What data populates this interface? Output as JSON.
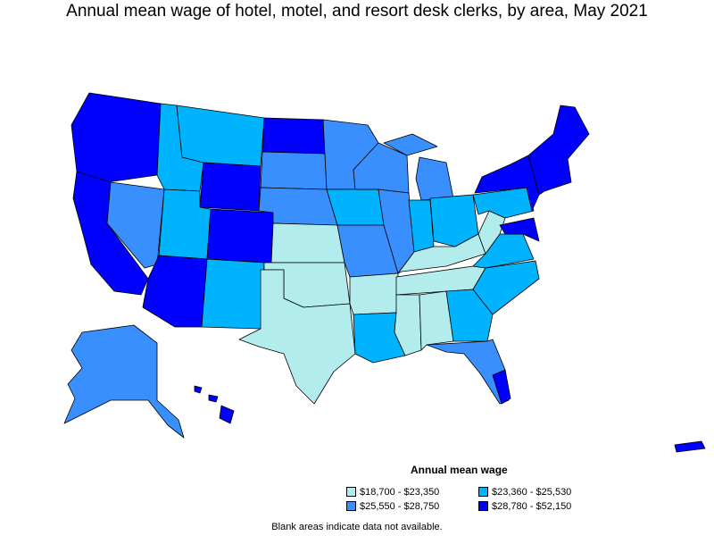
{
  "title": "Annual mean wage of hotel, motel, and resort desk clerks, by area, May 2021",
  "legend": {
    "title": "Annual mean wage",
    "items": [
      {
        "label": "$18,700 - $23,350",
        "color": "#b3ecec"
      },
      {
        "label": "$23,360 - $25,530",
        "color": "#00b3ff"
      },
      {
        "label": "$25,550 - $28,750",
        "color": "#3a8fff"
      },
      {
        "label": "$28,780 - $52,150",
        "color": "#0000ff"
      }
    ]
  },
  "footnote": "Blank areas indicate data not available.",
  "regions": [
    {
      "name": "Pacific Northwest",
      "range": "$28,780 - $52,150"
    },
    {
      "name": "California",
      "range": "$28,780 - $52,150"
    },
    {
      "name": "Nevada",
      "range": "$25,550 - $28,750"
    },
    {
      "name": "Idaho",
      "range": "$23,360 - $25,530"
    },
    {
      "name": "Montana",
      "range": "$23,360 - $25,530"
    },
    {
      "name": "Wyoming",
      "range": "$28,780 - $52,150"
    },
    {
      "name": "Utah",
      "range": "$23,360 - $25,530"
    },
    {
      "name": "Colorado",
      "range": "$28,780 - $52,150"
    },
    {
      "name": "Arizona",
      "range": "$28,780 - $52,150"
    },
    {
      "name": "New Mexico",
      "range": "$23,360 - $25,530"
    },
    {
      "name": "North Dakota",
      "range": "$28,780 - $52,150"
    },
    {
      "name": "South Dakota",
      "range": "$25,550 - $28,750"
    },
    {
      "name": "Nebraska",
      "range": "$25,550 - $28,750"
    },
    {
      "name": "Kansas",
      "range": "$18,700 - $23,350"
    },
    {
      "name": "Oklahoma",
      "range": "$18,700 - $23,350"
    },
    {
      "name": "Texas",
      "range": "$18,700 - $23,350"
    },
    {
      "name": "Minnesota",
      "range": "$25,550 - $28,750"
    },
    {
      "name": "Iowa",
      "range": "$23,360 - $25,530"
    },
    {
      "name": "Missouri",
      "range": "$25,550 - $28,750"
    },
    {
      "name": "Arkansas",
      "range": "$18,700 - $23,350"
    },
    {
      "name": "Louisiana",
      "range": "$23,360 - $25,530"
    },
    {
      "name": "Wisconsin",
      "range": "$25,550 - $28,750"
    },
    {
      "name": "Illinois",
      "range": "$25,550 - $28,750"
    },
    {
      "name": "Michigan",
      "range": "$25,550 - $28,750"
    },
    {
      "name": "Indiana",
      "range": "$23,360 - $25,530"
    },
    {
      "name": "Ohio",
      "range": "$23,360 - $25,530"
    },
    {
      "name": "Kentucky",
      "range": "$18,700 - $23,350"
    },
    {
      "name": "Tennessee",
      "range": "$18,700 - $23,350"
    },
    {
      "name": "Mississippi",
      "range": "$18,700 - $23,350"
    },
    {
      "name": "Alabama",
      "range": "$18,700 - $23,350"
    },
    {
      "name": "Georgia",
      "range": "$23,360 - $25,530"
    },
    {
      "name": "Florida",
      "range": "$25,550 - $28,750"
    },
    {
      "name": "South Florida",
      "range": "$28,780 - $52,150"
    },
    {
      "name": "Carolinas",
      "range": "$23,360 - $25,530"
    },
    {
      "name": "Virginia",
      "range": "$23,360 - $25,530"
    },
    {
      "name": "West Virginia",
      "range": "$18,700 - $23,350"
    },
    {
      "name": "Pennsylvania",
      "range": "$23,360 - $25,530"
    },
    {
      "name": "New York",
      "range": "$28,780 - $52,150"
    },
    {
      "name": "New England",
      "range": "$28,780 - $52,150"
    },
    {
      "name": "Maryland and Delaware",
      "range": "$28,780 - $52,150"
    },
    {
      "name": "Alaska",
      "range": "$25,550 - $28,750"
    },
    {
      "name": "Hawaii",
      "range": "$28,780 - $52,150"
    },
    {
      "name": "Puerto Rico",
      "range": "$28,780 - $52,150"
    }
  ]
}
